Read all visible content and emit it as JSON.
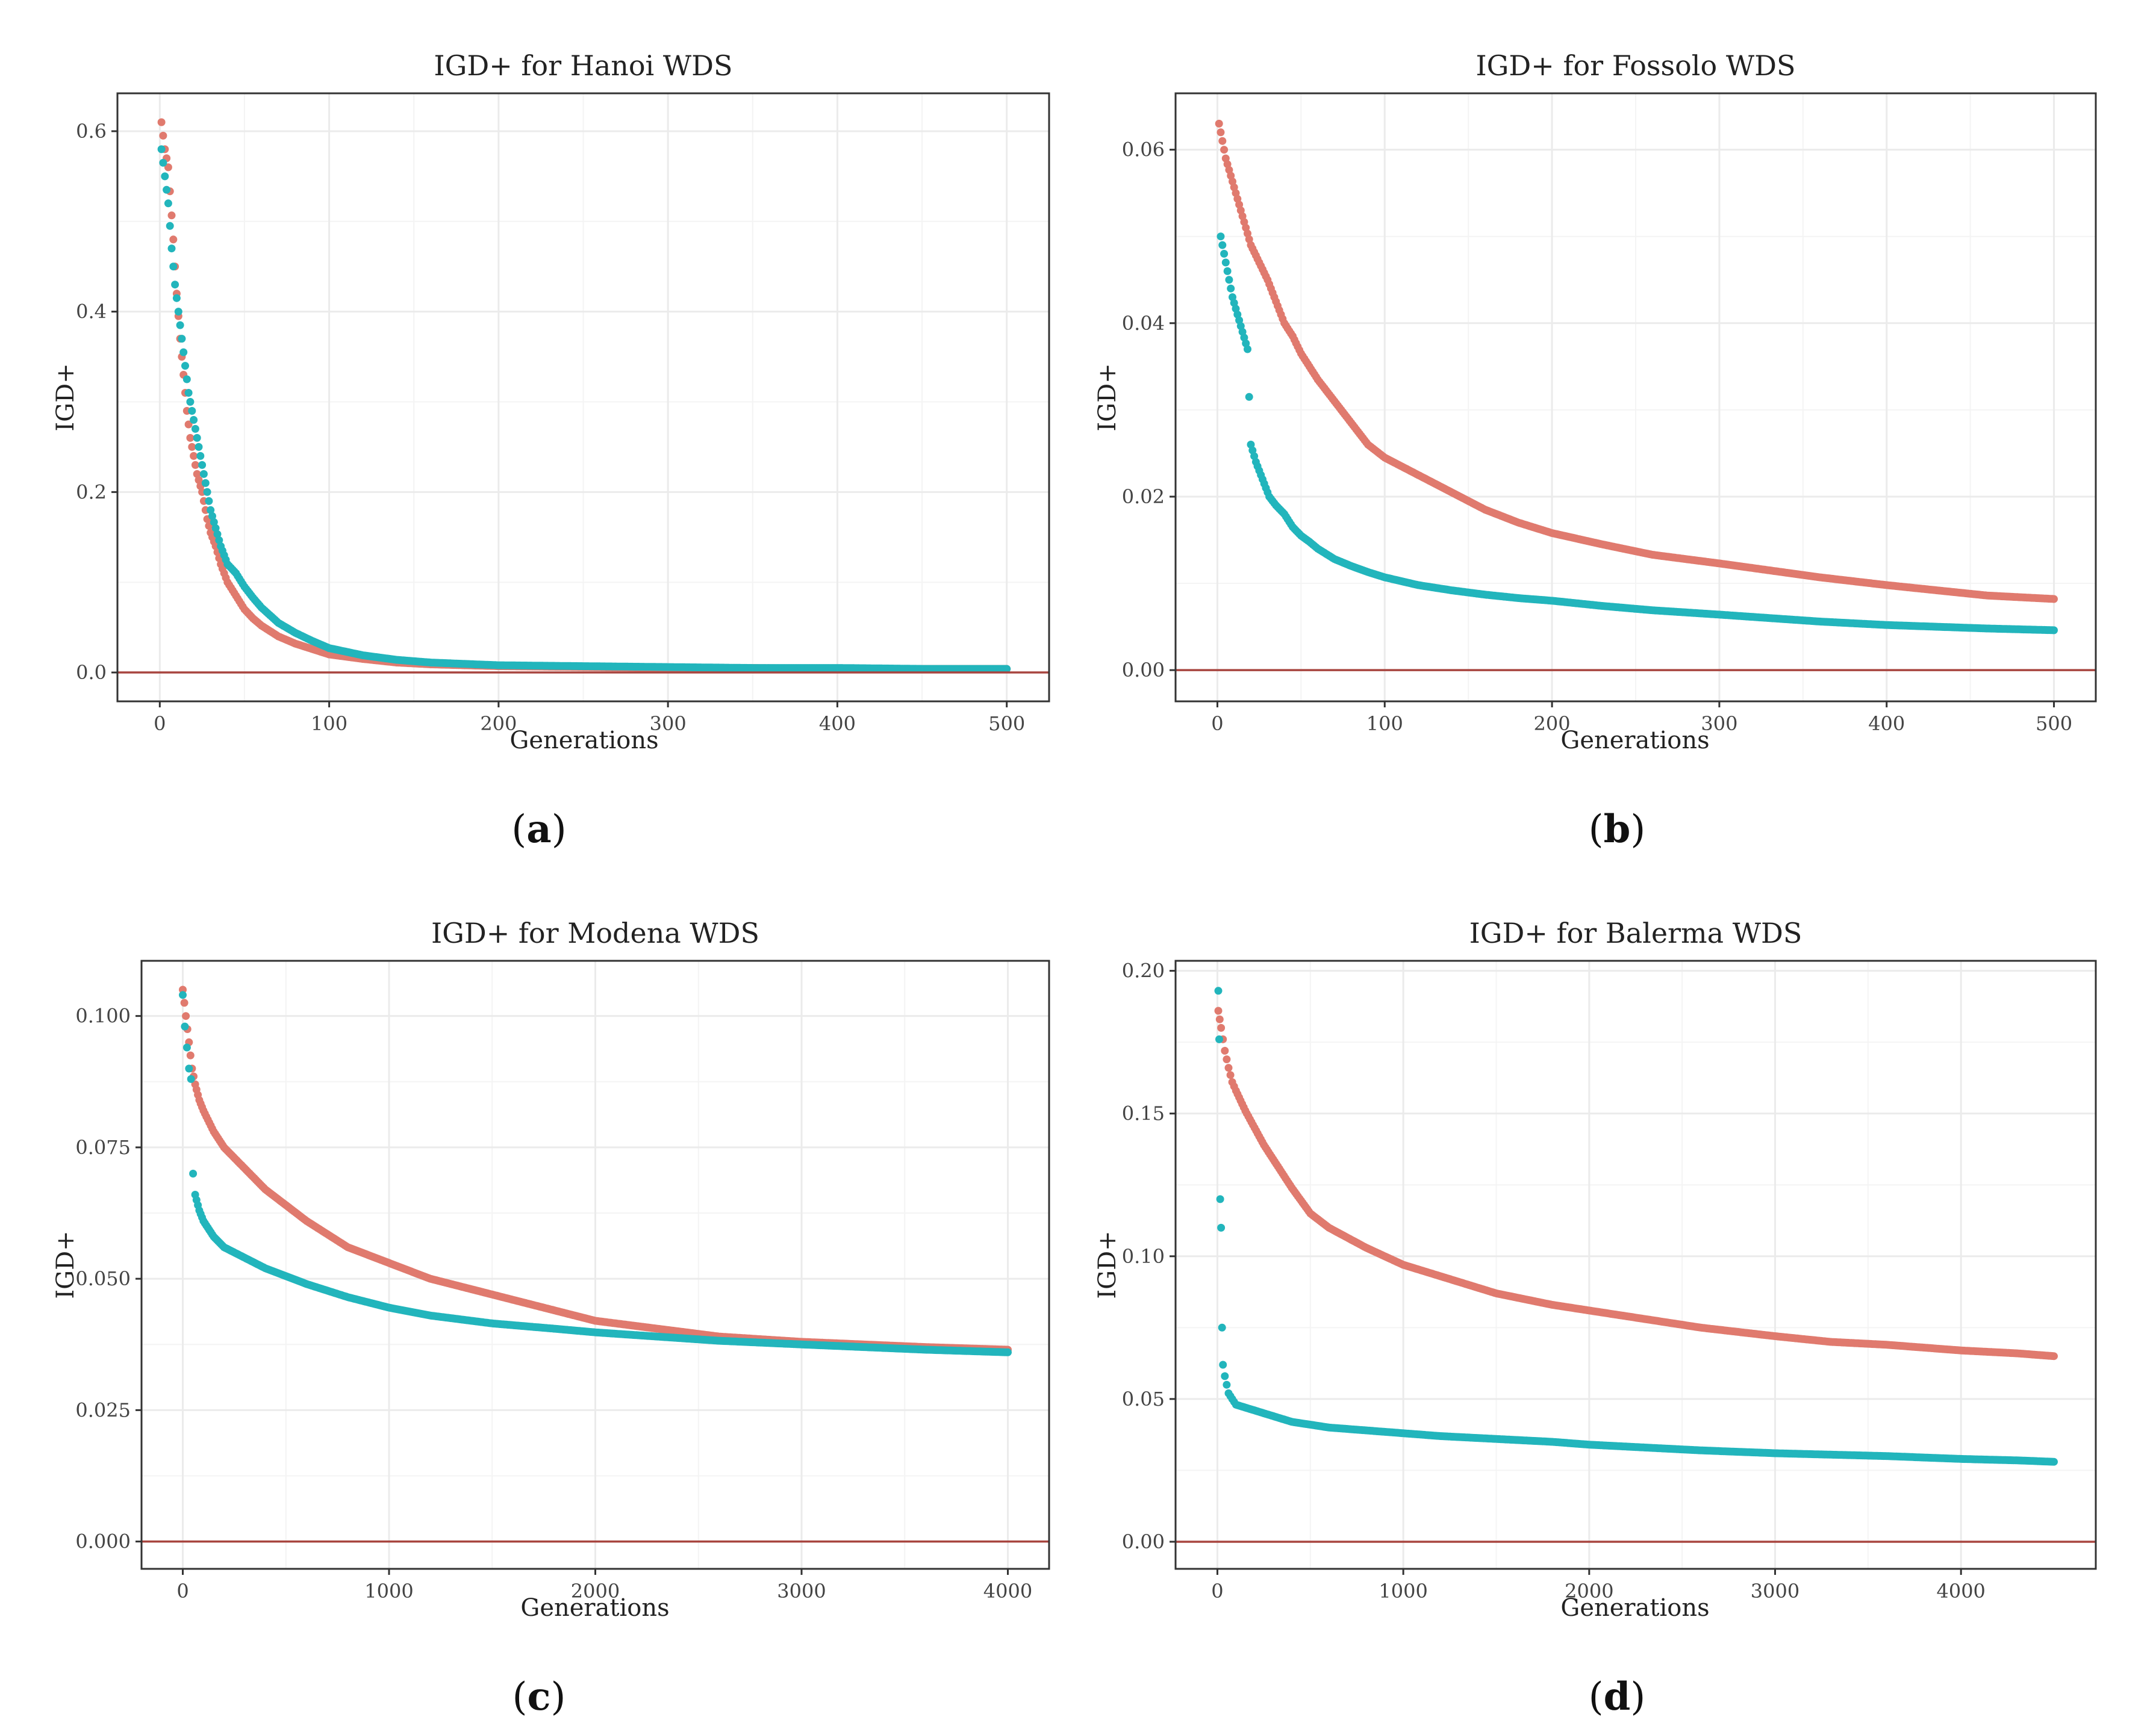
{
  "colors": {
    "red_series": "#E07A6E",
    "teal_series": "#22B5BC",
    "zero_line": "#A8453F"
  },
  "chart_data": [
    {
      "type": "scatter",
      "title": "IGD+ for Hanoi WDS",
      "xlabel": "Generations",
      "ylabel": "IGD+",
      "xlim": [
        -25,
        525
      ],
      "ylim": [
        -0.032,
        0.642
      ],
      "xticks": [
        0,
        100,
        200,
        300,
        400,
        500
      ],
      "xtick_labels": [
        "0",
        "100",
        "200",
        "300",
        "400",
        "500"
      ],
      "yticks": [
        0.0,
        0.2,
        0.4,
        0.6
      ],
      "ytick_labels": [
        "0.0",
        "0.2",
        "0.4",
        "0.6"
      ],
      "hline": 0,
      "series": [
        {
          "name": "series-red",
          "color": "#E07A6E",
          "x": [
            1,
            3,
            5,
            8,
            10,
            12,
            14,
            16,
            18,
            20,
            22,
            25,
            28,
            30,
            33,
            36,
            40,
            45,
            50,
            55,
            60,
            70,
            80,
            90,
            100,
            120,
            140,
            160,
            200,
            250,
            300,
            350,
            400,
            450,
            500
          ],
          "y": [
            0.61,
            0.58,
            0.56,
            0.48,
            0.42,
            0.37,
            0.33,
            0.29,
            0.26,
            0.24,
            0.22,
            0.2,
            0.17,
            0.155,
            0.14,
            0.12,
            0.1,
            0.085,
            0.07,
            0.06,
            0.052,
            0.04,
            0.032,
            0.026,
            0.02,
            0.015,
            0.011,
            0.009,
            0.007,
            0.006,
            0.005,
            0.005,
            0.004,
            0.004,
            0.004
          ]
        },
        {
          "name": "series-teal",
          "color": "#22B5BC",
          "x": [
            1,
            3,
            5,
            7,
            9,
            11,
            13,
            15,
            17,
            19,
            21,
            24,
            27,
            30,
            33,
            36,
            40,
            45,
            50,
            55,
            60,
            70,
            80,
            90,
            100,
            120,
            140,
            160,
            200,
            250,
            300,
            350,
            400,
            450,
            500
          ],
          "y": [
            0.58,
            0.55,
            0.52,
            0.47,
            0.43,
            0.4,
            0.37,
            0.34,
            0.31,
            0.29,
            0.27,
            0.24,
            0.21,
            0.18,
            0.16,
            0.14,
            0.12,
            0.11,
            0.095,
            0.083,
            0.072,
            0.055,
            0.044,
            0.035,
            0.027,
            0.019,
            0.014,
            0.011,
            0.008,
            0.007,
            0.006,
            0.005,
            0.005,
            0.004,
            0.004
          ]
        }
      ]
    },
    {
      "type": "scatter",
      "title": "IGD+ for Fossolo WDS",
      "xlabel": "Generations",
      "ylabel": "IGD+",
      "xlim": [
        -25,
        525
      ],
      "ylim": [
        -0.0036,
        0.0665
      ],
      "xticks": [
        0,
        100,
        200,
        300,
        400,
        500
      ],
      "xtick_labels": [
        "0",
        "100",
        "200",
        "300",
        "400",
        "500"
      ],
      "yticks": [
        0.0,
        0.02,
        0.04,
        0.06
      ],
      "ytick_labels": [
        "0.00",
        "0.02",
        "0.04",
        "0.06"
      ],
      "hline": 0,
      "series": [
        {
          "name": "series-red",
          "color": "#E07A6E",
          "x": [
            1,
            3,
            5,
            8,
            11,
            14,
            17,
            20,
            25,
            30,
            35,
            40,
            45,
            50,
            55,
            60,
            70,
            80,
            90,
            100,
            120,
            140,
            160,
            180,
            200,
            230,
            260,
            300,
            330,
            360,
            400,
            430,
            460,
            500
          ],
          "y": [
            0.063,
            0.061,
            0.059,
            0.057,
            0.055,
            0.053,
            0.051,
            0.049,
            0.047,
            0.045,
            0.0425,
            0.04,
            0.0385,
            0.0365,
            0.035,
            0.0335,
            0.031,
            0.0285,
            0.026,
            0.0245,
            0.0225,
            0.0205,
            0.0185,
            0.017,
            0.0158,
            0.0145,
            0.0133,
            0.0123,
            0.0115,
            0.0107,
            0.0098,
            0.0092,
            0.0086,
            0.0082
          ]
        },
        {
          "name": "series-teal",
          "color": "#22B5BC",
          "x": [
            2,
            4,
            6,
            9,
            12,
            15,
            18,
            20,
            23,
            27,
            31,
            35,
            40,
            45,
            50,
            55,
            60,
            70,
            80,
            90,
            100,
            120,
            140,
            160,
            180,
            200,
            230,
            260,
            300,
            330,
            360,
            400,
            430,
            460,
            500
          ],
          "y": [
            0.05,
            0.048,
            0.046,
            0.043,
            0.041,
            0.039,
            0.037,
            0.026,
            0.024,
            0.022,
            0.02,
            0.019,
            0.018,
            0.0165,
            0.0155,
            0.0148,
            0.014,
            0.0128,
            0.012,
            0.0113,
            0.0107,
            0.0098,
            0.0092,
            0.0087,
            0.0083,
            0.008,
            0.0074,
            0.0069,
            0.0064,
            0.006,
            0.0056,
            0.0052,
            0.005,
            0.0048,
            0.0046
          ]
        }
      ]
    },
    {
      "type": "scatter",
      "title": "IGD+ for Modena WDS",
      "xlabel": "Generations",
      "ylabel": "IGD+",
      "xlim": [
        -200,
        4200
      ],
      "ylim": [
        -0.0052,
        0.1105
      ],
      "xticks": [
        0,
        1000,
        2000,
        3000,
        4000
      ],
      "xtick_labels": [
        "0",
        "1000",
        "2000",
        "3000",
        "4000"
      ],
      "yticks": [
        0.0,
        0.025,
        0.05,
        0.075,
        0.1
      ],
      "ytick_labels": [
        "0.000",
        "0.025",
        "0.050",
        "0.075",
        "0.100"
      ],
      "hline": 0,
      "series": [
        {
          "name": "series-red",
          "color": "#E07A6E",
          "x": [
            0,
            15,
            30,
            45,
            60,
            80,
            100,
            150,
            200,
            300,
            400,
            500,
            600,
            800,
            1000,
            1200,
            1500,
            1800,
            2000,
            2300,
            2600,
            3000,
            3300,
            3600,
            4000
          ],
          "y": [
            0.105,
            0.1,
            0.095,
            0.09,
            0.087,
            0.084,
            0.082,
            0.078,
            0.075,
            0.071,
            0.067,
            0.064,
            0.061,
            0.056,
            0.053,
            0.05,
            0.047,
            0.044,
            0.042,
            0.0405,
            0.039,
            0.038,
            0.0375,
            0.037,
            0.0365
          ]
        },
        {
          "name": "series-teal",
          "color": "#22B5BC",
          "x": [
            0,
            10,
            20,
            30,
            40,
            50,
            60,
            80,
            100,
            150,
            200,
            300,
            400,
            500,
            600,
            800,
            1000,
            1200,
            1500,
            1800,
            2000,
            2300,
            2600,
            3000,
            3300,
            3600,
            4000
          ],
          "y": [
            0.104,
            0.098,
            0.094,
            0.09,
            0.088,
            0.07,
            0.066,
            0.063,
            0.061,
            0.058,
            0.056,
            0.054,
            0.052,
            0.0505,
            0.049,
            0.0465,
            0.0445,
            0.043,
            0.0415,
            0.0405,
            0.0398,
            0.039,
            0.0382,
            0.0375,
            0.037,
            0.0365,
            0.036
          ]
        }
      ]
    },
    {
      "type": "scatter",
      "title": "IGD+ for Balerma WDS",
      "xlabel": "Generations",
      "ylabel": "IGD+",
      "xlim": [
        -225,
        4725
      ],
      "ylim": [
        -0.0095,
        0.2035
      ],
      "xticks": [
        0,
        1000,
        2000,
        3000,
        4000
      ],
      "xtick_labels": [
        "0",
        "1000",
        "2000",
        "3000",
        "4000"
      ],
      "yticks": [
        0.0,
        0.05,
        0.1,
        0.15,
        0.2
      ],
      "ytick_labels": [
        "0.00",
        "0.05",
        "0.10",
        "0.15",
        "0.20"
      ],
      "hline": 0,
      "series": [
        {
          "name": "series-red",
          "color": "#E07A6E",
          "x": [
            5,
            20,
            40,
            60,
            80,
            100,
            150,
            200,
            250,
            300,
            400,
            500,
            600,
            800,
            1000,
            1200,
            1500,
            1800,
            2000,
            2300,
            2600,
            3000,
            3300,
            3600,
            4000,
            4300,
            4500
          ],
          "y": [
            0.186,
            0.18,
            0.172,
            0.166,
            0.161,
            0.158,
            0.151,
            0.145,
            0.139,
            0.134,
            0.124,
            0.115,
            0.11,
            0.103,
            0.097,
            0.093,
            0.087,
            0.083,
            0.081,
            0.078,
            0.075,
            0.072,
            0.07,
            0.069,
            0.067,
            0.066,
            0.065
          ]
        },
        {
          "name": "series-teal",
          "color": "#22B5BC",
          "x": [
            5,
            10,
            15,
            20,
            25,
            30,
            40,
            50,
            60,
            80,
            100,
            150,
            200,
            300,
            400,
            500,
            600,
            800,
            1000,
            1200,
            1500,
            1800,
            2000,
            2300,
            2600,
            3000,
            3300,
            3600,
            4000,
            4300,
            4500
          ],
          "y": [
            0.193,
            0.176,
            0.12,
            0.11,
            0.075,
            0.062,
            0.058,
            0.055,
            0.052,
            0.05,
            0.048,
            0.047,
            0.046,
            0.044,
            0.042,
            0.041,
            0.04,
            0.039,
            0.038,
            0.037,
            0.036,
            0.035,
            0.034,
            0.033,
            0.032,
            0.031,
            0.0305,
            0.03,
            0.029,
            0.0285,
            0.028
          ]
        }
      ]
    }
  ],
  "subfigure_labels": [
    "a",
    "b",
    "c",
    "d"
  ]
}
